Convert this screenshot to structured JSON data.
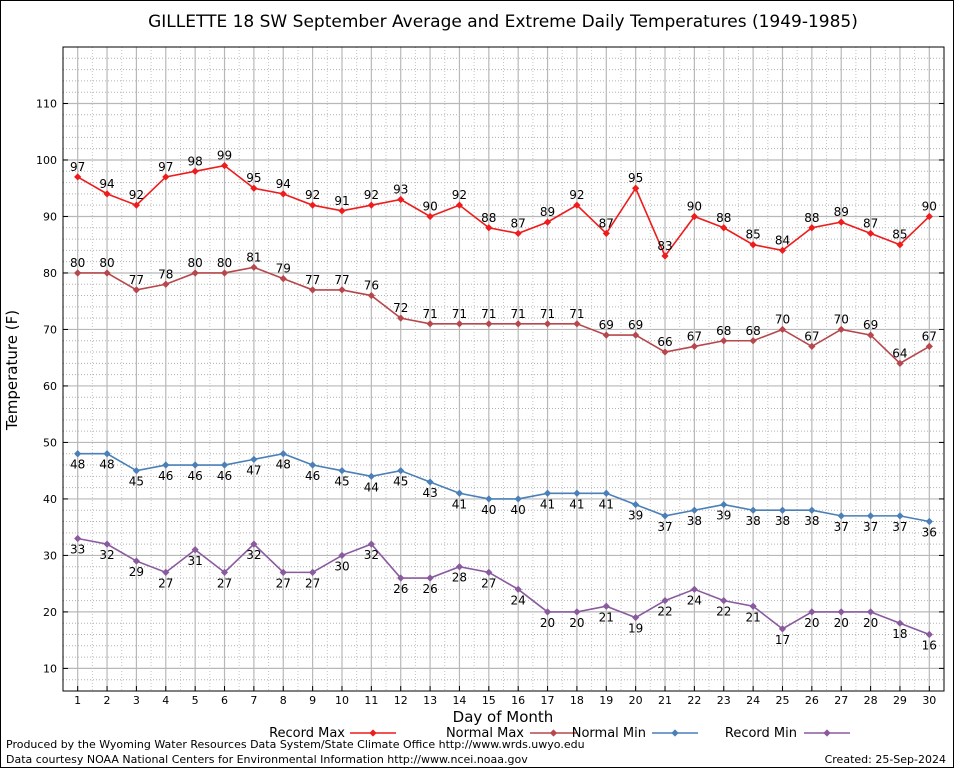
{
  "chart_data": {
    "type": "line",
    "title": "GILLETTE 18 SW September Average and Extreme Daily Temperatures (1949-1985)",
    "xlabel": "Day of Month",
    "ylabel": "Temperature (F)",
    "x": [
      1,
      2,
      3,
      4,
      5,
      6,
      7,
      8,
      9,
      10,
      11,
      12,
      13,
      14,
      15,
      16,
      17,
      18,
      19,
      20,
      21,
      22,
      23,
      24,
      25,
      26,
      27,
      28,
      29,
      30
    ],
    "xlim": [
      0.5,
      30.5
    ],
    "ylim": [
      6,
      120
    ],
    "yticks": [
      10,
      20,
      30,
      40,
      50,
      60,
      70,
      80,
      90,
      100,
      110
    ],
    "grid": true,
    "legend_position": "bottom",
    "series": [
      {
        "name": "Record Max",
        "color": "#ee1c1c",
        "label_position": "above",
        "values": [
          97,
          94,
          92,
          97,
          98,
          99,
          95,
          94,
          92,
          91,
          92,
          93,
          90,
          92,
          88,
          87,
          89,
          92,
          87,
          95,
          83,
          90,
          88,
          85,
          84,
          88,
          89,
          87,
          85,
          90
        ]
      },
      {
        "name": "Normal Max",
        "color": "#b7474c",
        "label_position": "above",
        "values": [
          80,
          80,
          77,
          78,
          80,
          80,
          81,
          79,
          77,
          77,
          76,
          72,
          71,
          71,
          71,
          71,
          71,
          71,
          69,
          69,
          66,
          67,
          68,
          68,
          70,
          67,
          70,
          69,
          64,
          67
        ]
      },
      {
        "name": "Normal Min",
        "color": "#4a7fb8",
        "label_position": "below",
        "values": [
          48,
          48,
          45,
          46,
          46,
          46,
          47,
          48,
          46,
          45,
          44,
          45,
          43,
          41,
          40,
          40,
          41,
          41,
          41,
          39,
          37,
          38,
          39,
          38,
          38,
          38,
          37,
          37,
          37,
          36
        ]
      },
      {
        "name": "Record Min",
        "color": "#8a5a9e",
        "label_position": "below",
        "values": [
          33,
          32,
          29,
          27,
          31,
          27,
          32,
          27,
          27,
          30,
          32,
          26,
          26,
          28,
          27,
          24,
          20,
          20,
          21,
          19,
          22,
          24,
          22,
          21,
          17,
          20,
          20,
          20,
          18,
          16
        ]
      }
    ]
  },
  "footer": {
    "produced_by": "Produced by the Wyoming Water Resources Data System/State Climate Office http://www.wrds.uwyo.edu",
    "courtesy": "Data courtesy NOAA National Centers for Environmental Information http://www.ncei.noaa.gov",
    "created": "Created:  25-Sep-2024"
  }
}
